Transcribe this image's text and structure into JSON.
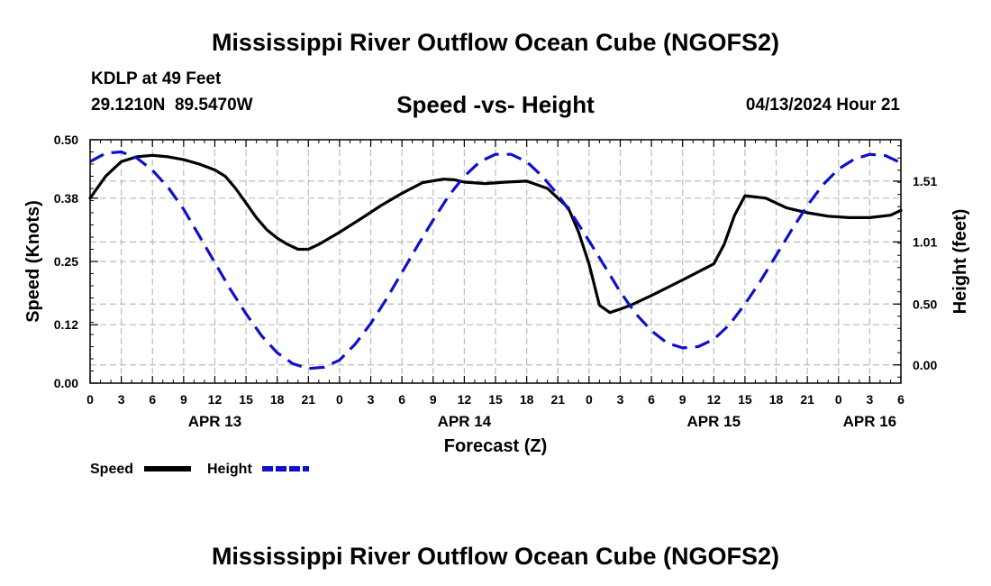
{
  "header": {
    "title": "Mississippi River Outflow Ocean Cube (NGOFS2)",
    "station": "KDLP at 49 Feet",
    "coords": "29.1210N  89.5470W",
    "datetime": "04/13/2024 Hour 21",
    "footer_title": "Mississippi River Outflow Ocean Cube (NGOFS2)"
  },
  "chart_data": {
    "type": "line",
    "title": "Speed -vs- Height",
    "xlabel": "Forecast (Z)",
    "ylabel": "Speed (Knots)",
    "y2label": "Height (feet)",
    "xlim": [
      0,
      78
    ],
    "ylim": [
      0,
      0.5
    ],
    "y2lim": [
      -0.15,
      1.85
    ],
    "xtick_labels": [
      "0",
      "3",
      "6",
      "9",
      "12",
      "15",
      "18",
      "21",
      "0",
      "3",
      "6",
      "9",
      "12",
      "15",
      "18",
      "21",
      "0",
      "3",
      "6",
      "9",
      "12",
      "15",
      "18",
      "21",
      "0",
      "3",
      "6"
    ],
    "date_labels": [
      {
        "label": "APR 13",
        "x": 12
      },
      {
        "label": "APR 14",
        "x": 36
      },
      {
        "label": "APR 15",
        "x": 60
      },
      {
        "label": "APR 16",
        "x": 75
      }
    ],
    "yticks": [
      0.0,
      0.12,
      0.25,
      0.38,
      0.5
    ],
    "y2ticks": [
      0.0,
      0.5,
      1.01,
      1.51
    ],
    "grid": true,
    "legend_position": "bottom-left",
    "series": [
      {
        "name": "Speed",
        "axis": "left",
        "color": "#000000",
        "style": "solid",
        "x": [
          0,
          1.5,
          3,
          4.5,
          6,
          7.5,
          9,
          10.5,
          12,
          13,
          14,
          15,
          16,
          17,
          18,
          19,
          20,
          21,
          22,
          24,
          26,
          28,
          30,
          32,
          34,
          35,
          36,
          38,
          40,
          42,
          44,
          46,
          47,
          48,
          49,
          50,
          51,
          52,
          54,
          57,
          60,
          61,
          62,
          63,
          65,
          67,
          69,
          71,
          73,
          75,
          77,
          78
        ],
        "values": [
          0.38,
          0.425,
          0.455,
          0.465,
          0.468,
          0.465,
          0.459,
          0.45,
          0.438,
          0.425,
          0.4,
          0.37,
          0.34,
          0.315,
          0.298,
          0.285,
          0.275,
          0.275,
          0.285,
          0.31,
          0.337,
          0.365,
          0.39,
          0.412,
          0.419,
          0.418,
          0.413,
          0.41,
          0.413,
          0.415,
          0.4,
          0.36,
          0.31,
          0.245,
          0.16,
          0.145,
          0.152,
          0.16,
          0.18,
          0.212,
          0.245,
          0.285,
          0.345,
          0.385,
          0.38,
          0.36,
          0.35,
          0.343,
          0.34,
          0.34,
          0.345,
          0.355
        ]
      },
      {
        "name": "Height",
        "axis": "right",
        "color": "#1010cc",
        "style": "dashed",
        "x": [
          0,
          1.5,
          3,
          4.5,
          6,
          7.5,
          9,
          10.5,
          12,
          13.5,
          15,
          16.5,
          18,
          19.5,
          21,
          22.5,
          24,
          25.5,
          27,
          28.5,
          30,
          31.5,
          33,
          34.5,
          36,
          37.5,
          39,
          40.5,
          42,
          43.5,
          45,
          46.5,
          48,
          49.5,
          51,
          52.5,
          54,
          55.5,
          57,
          58.5,
          60,
          61.5,
          63,
          64.5,
          66,
          67.5,
          69,
          70.5,
          72,
          73.5,
          75,
          76.5,
          78
        ],
        "values": [
          1.67,
          1.74,
          1.75,
          1.7,
          1.6,
          1.46,
          1.28,
          1.06,
          0.84,
          0.62,
          0.42,
          0.24,
          0.1,
          0.01,
          -0.03,
          -0.02,
          0.04,
          0.17,
          0.34,
          0.54,
          0.76,
          0.98,
          1.19,
          1.39,
          1.55,
          1.67,
          1.73,
          1.73,
          1.67,
          1.55,
          1.4,
          1.22,
          1.02,
          0.81,
          0.6,
          0.42,
          0.28,
          0.18,
          0.14,
          0.15,
          0.21,
          0.33,
          0.5,
          0.69,
          0.9,
          1.11,
          1.31,
          1.48,
          1.61,
          1.69,
          1.73,
          1.72,
          1.66
        ]
      }
    ]
  }
}
